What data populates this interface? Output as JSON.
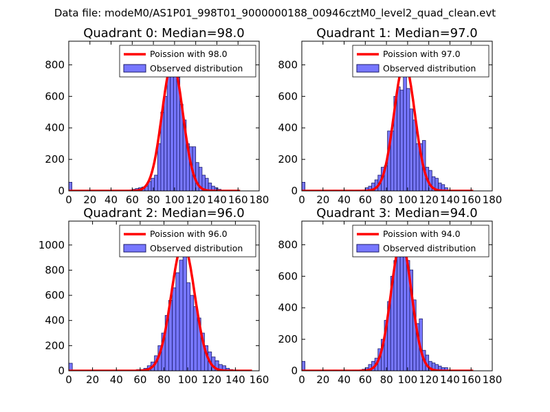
{
  "figure_title": "Data file: modeM0/AS1P01_998T01_9000000188_00946cztM0_level2_quad_clean.evt",
  "colors": {
    "hist_fill": "#7777ff",
    "hist_edge": "#1a1a66",
    "poisson": "#ff0000"
  },
  "chart_data": [
    {
      "type": "bar",
      "title": "Quadrant 0: Median=98.0",
      "median": 98.0,
      "xlim": [
        0,
        180
      ],
      "ylim": [
        0,
        950
      ],
      "xticks": [
        0,
        20,
        40,
        60,
        80,
        100,
        120,
        140,
        160,
        180
      ],
      "yticks": [
        0,
        200,
        400,
        600,
        800
      ],
      "legend": [
        "Poission with 98.0",
        "Observed distribution"
      ],
      "legend_position": "top-right",
      "bin_width": 3,
      "histogram": [
        [
          0,
          55
        ],
        [
          54,
          5
        ],
        [
          57,
          5
        ],
        [
          60,
          10
        ],
        [
          63,
          15
        ],
        [
          66,
          20
        ],
        [
          69,
          25
        ],
        [
          72,
          30
        ],
        [
          75,
          60
        ],
        [
          78,
          80
        ],
        [
          81,
          100
        ],
        [
          84,
          300
        ],
        [
          87,
          500
        ],
        [
          90,
          600
        ],
        [
          93,
          800
        ],
        [
          96,
          800
        ],
        [
          99,
          880
        ],
        [
          102,
          720
        ],
        [
          105,
          550
        ],
        [
          108,
          450
        ],
        [
          111,
          300
        ],
        [
          114,
          280
        ],
        [
          117,
          280
        ],
        [
          120,
          180
        ],
        [
          123,
          150
        ],
        [
          126,
          100
        ],
        [
          129,
          80
        ],
        [
          132,
          50
        ],
        [
          135,
          30
        ],
        [
          138,
          20
        ],
        [
          141,
          10
        ]
      ],
      "poisson_mean": 98.0,
      "poisson_peak": 810,
      "poisson_x_range": [
        0,
        162
      ]
    },
    {
      "type": "bar",
      "title": "Quadrant 1: Median=97.0",
      "median": 97.0,
      "xlim": [
        0,
        180
      ],
      "ylim": [
        0,
        950
      ],
      "xticks": [
        0,
        20,
        40,
        60,
        80,
        100,
        120,
        140,
        160,
        180
      ],
      "yticks": [
        0,
        200,
        400,
        600,
        800
      ],
      "legend": [
        "Poission with 97.0",
        "Observed distribution"
      ],
      "legend_position": "top-right",
      "bin_width": 3,
      "histogram": [
        [
          0,
          55
        ],
        [
          30,
          5
        ],
        [
          45,
          5
        ],
        [
          51,
          5
        ],
        [
          54,
          5
        ],
        [
          57,
          5
        ],
        [
          60,
          20
        ],
        [
          63,
          30
        ],
        [
          66,
          50
        ],
        [
          69,
          70
        ],
        [
          72,
          100
        ],
        [
          75,
          150
        ],
        [
          78,
          160
        ],
        [
          81,
          380
        ],
        [
          84,
          380
        ],
        [
          87,
          600
        ],
        [
          90,
          660
        ],
        [
          93,
          640
        ],
        [
          96,
          860
        ],
        [
          99,
          650
        ],
        [
          102,
          520
        ],
        [
          105,
          450
        ],
        [
          108,
          300
        ],
        [
          111,
          300
        ],
        [
          114,
          320
        ],
        [
          117,
          150
        ],
        [
          120,
          130
        ],
        [
          123,
          90
        ],
        [
          126,
          80
        ],
        [
          129,
          50
        ],
        [
          132,
          40
        ],
        [
          135,
          20
        ]
      ],
      "poisson_mean": 97.0,
      "poisson_peak": 810,
      "poisson_x_range": [
        0,
        162
      ]
    },
    {
      "type": "bar",
      "title": "Quadrant 2: Median=96.0",
      "median": 96.0,
      "xlim": [
        0,
        160
      ],
      "ylim": [
        0,
        1190
      ],
      "xticks": [
        0,
        20,
        40,
        60,
        80,
        100,
        120,
        140,
        160
      ],
      "yticks": [
        0,
        200,
        400,
        600,
        800,
        1000
      ],
      "legend": [
        "Poission with 96.0",
        "Observed distribution"
      ],
      "legend_position": "top-right",
      "bin_width": 3,
      "histogram": [
        [
          0,
          60
        ],
        [
          48,
          5
        ],
        [
          51,
          5
        ],
        [
          54,
          5
        ],
        [
          57,
          10
        ],
        [
          60,
          10
        ],
        [
          63,
          20
        ],
        [
          66,
          40
        ],
        [
          69,
          70
        ],
        [
          72,
          120
        ],
        [
          75,
          200
        ],
        [
          78,
          300
        ],
        [
          81,
          440
        ],
        [
          84,
          560
        ],
        [
          87,
          660
        ],
        [
          90,
          780
        ],
        [
          93,
          880
        ],
        [
          96,
          1100
        ],
        [
          99,
          700
        ],
        [
          102,
          600
        ],
        [
          105,
          510
        ],
        [
          108,
          420
        ],
        [
          111,
          300
        ],
        [
          114,
          200
        ],
        [
          117,
          150
        ],
        [
          120,
          110
        ],
        [
          123,
          80
        ],
        [
          126,
          50
        ],
        [
          129,
          40
        ],
        [
          132,
          20
        ],
        [
          135,
          10
        ]
      ],
      "poisson_mean": 96.0,
      "poisson_peak": 1010,
      "poisson_x_range": [
        0,
        154
      ]
    },
    {
      "type": "bar",
      "title": "Quadrant 3: Median=94.0",
      "median": 94.0,
      "xlim": [
        0,
        180
      ],
      "ylim": [
        0,
        950
      ],
      "xticks": [
        0,
        20,
        40,
        60,
        80,
        100,
        120,
        140,
        160,
        180
      ],
      "yticks": [
        0,
        200,
        400,
        600,
        800
      ],
      "legend": [
        "Poission with 94.0",
        "Observed distribution"
      ],
      "legend_position": "top-right",
      "bin_width": 3,
      "histogram": [
        [
          0,
          60
        ],
        [
          30,
          5
        ],
        [
          48,
          5
        ],
        [
          51,
          5
        ],
        [
          54,
          5
        ],
        [
          57,
          10
        ],
        [
          60,
          20
        ],
        [
          63,
          40
        ],
        [
          66,
          60
        ],
        [
          69,
          80
        ],
        [
          72,
          140
        ],
        [
          75,
          200
        ],
        [
          78,
          320
        ],
        [
          81,
          440
        ],
        [
          84,
          600
        ],
        [
          87,
          700
        ],
        [
          90,
          860
        ],
        [
          93,
          900
        ],
        [
          96,
          900
        ],
        [
          99,
          700
        ],
        [
          102,
          640
        ],
        [
          105,
          450
        ],
        [
          108,
          300
        ],
        [
          111,
          330
        ],
        [
          114,
          130
        ],
        [
          117,
          100
        ],
        [
          120,
          60
        ],
        [
          123,
          50
        ],
        [
          126,
          40
        ],
        [
          129,
          30
        ],
        [
          132,
          20
        ],
        [
          135,
          20
        ]
      ],
      "poisson_mean": 94.0,
      "poisson_peak": 820,
      "poisson_x_range": [
        0,
        162
      ]
    }
  ]
}
